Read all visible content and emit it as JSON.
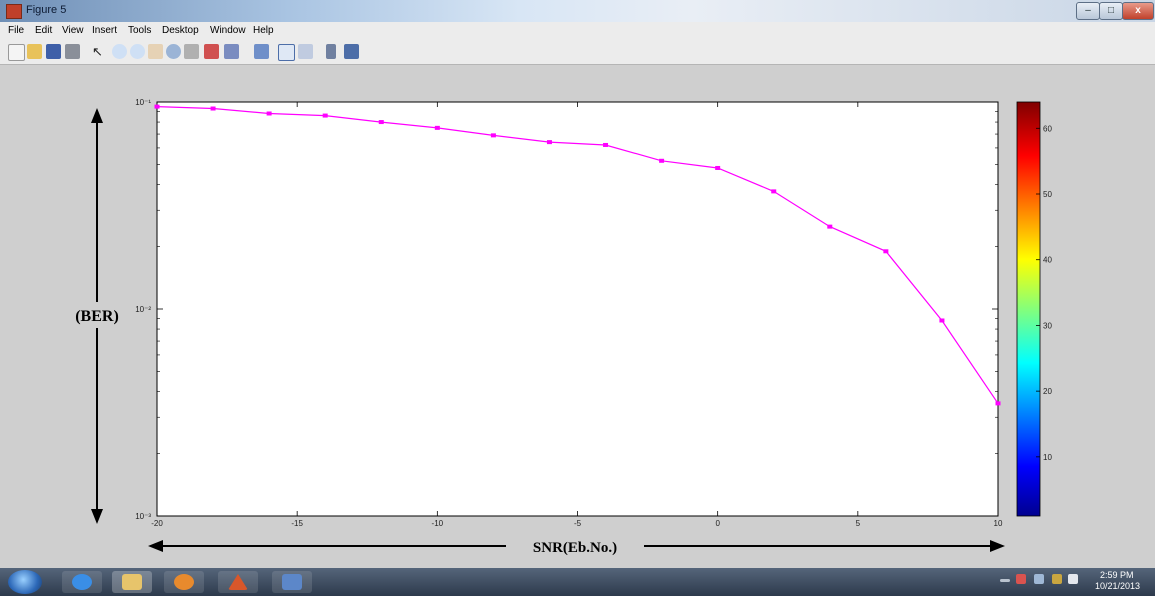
{
  "window": {
    "title": "Figure 5",
    "controls": {
      "minimize": "–",
      "maximize": "□",
      "close": "x"
    }
  },
  "menubar": [
    "File",
    "Edit",
    "View",
    "Insert",
    "Tools",
    "Desktop",
    "Window",
    "Help"
  ],
  "toolbar": [
    "new-file-icon",
    "open-folder-icon",
    "save-icon",
    "print-icon",
    "select-arrow-icon",
    "zoom-in-icon",
    "zoom-out-icon",
    "pan-icon",
    "rotate-3d-icon",
    "data-cursor-icon",
    "brush-icon",
    "link-icon",
    "colorbar-icon",
    "legend-icon",
    "hide-plot-tools-icon",
    "show-plot-tools-icon"
  ],
  "chart_data": {
    "type": "line",
    "x": [
      -20,
      -18,
      -16,
      -14,
      -12,
      -10,
      -8,
      -6,
      -4,
      -2,
      0,
      2,
      4,
      6,
      8,
      10
    ],
    "series": [
      {
        "values": [
          0.095,
          0.093,
          0.088,
          0.086,
          0.08,
          0.075,
          0.069,
          0.064,
          0.062,
          0.052,
          0.048,
          0.037,
          0.025,
          0.019,
          0.0088,
          0.0035
        ],
        "color": "#ff00ff"
      }
    ],
    "xlim": [
      -20,
      10
    ],
    "ylim": [
      0.001,
      0.1
    ],
    "yscale": "log",
    "xticks": [
      "-20",
      "-15",
      "-10",
      "-5",
      "0",
      "5",
      "10"
    ],
    "yticks": [
      "10⁻¹",
      "10⁻²",
      "10⁻³"
    ],
    "xlabel": "SNR(Eb.No.)",
    "ylabel": "(BER)",
    "grid": false,
    "colorbar": {
      "ticks": [
        "10",
        "20",
        "30",
        "40",
        "50",
        "60"
      ],
      "range": [
        1,
        64
      ],
      "colormap": "jet"
    }
  },
  "taskbar": {
    "apps": [
      "internet-explorer-icon",
      "file-explorer-icon",
      "media-player-icon",
      "matlab-icon",
      "figure-window-icon"
    ],
    "clock_time": "2:59 PM",
    "clock_date": "10/21/2013"
  }
}
